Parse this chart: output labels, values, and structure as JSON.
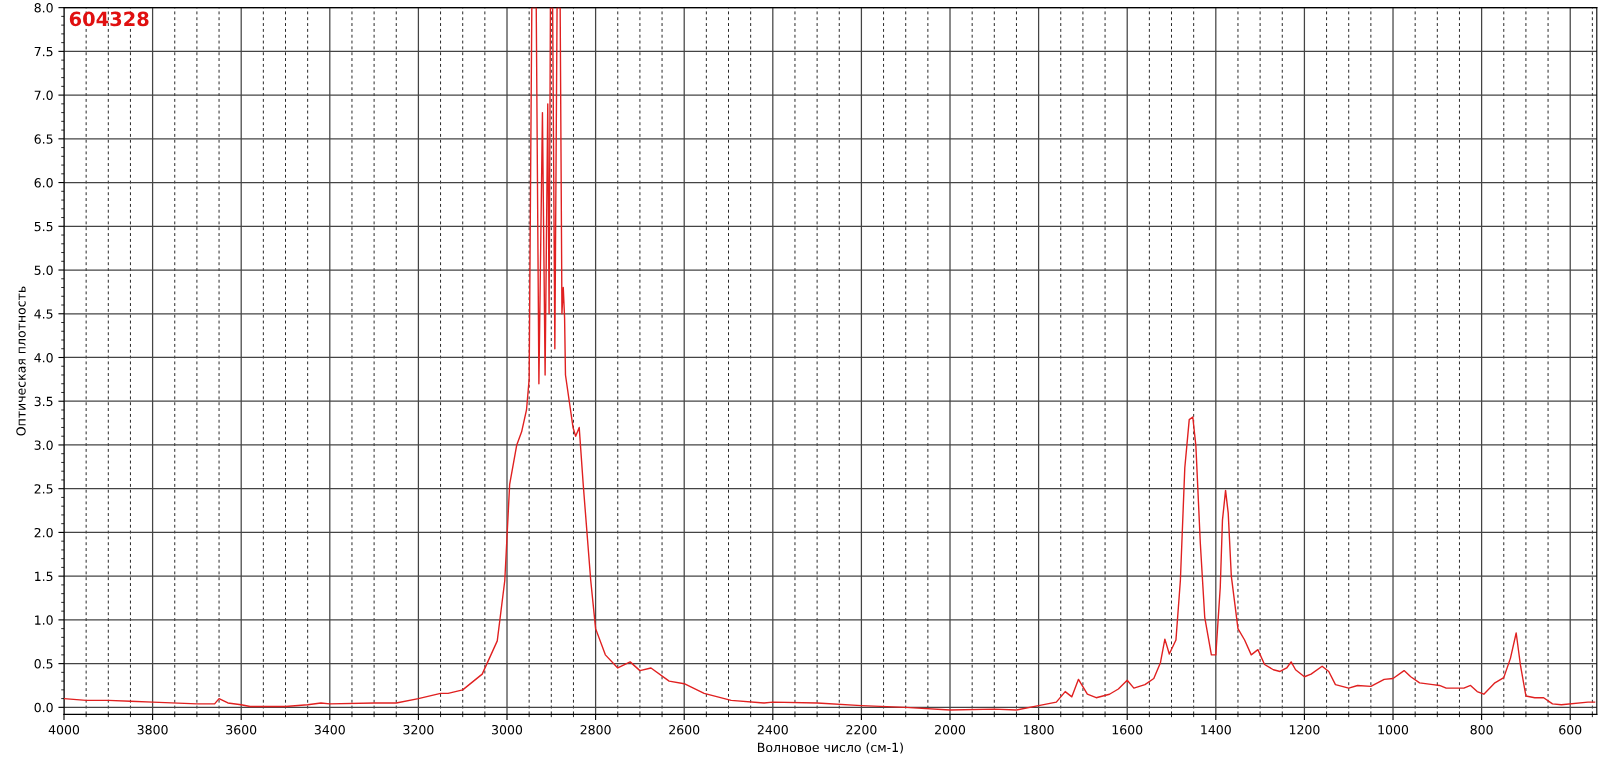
{
  "chart_data": {
    "type": "line",
    "xlabel": "Волновое число (см-1)",
    "ylabel": "Оптическая плотность",
    "annotations": [
      "604328"
    ],
    "xlim": [
      4000,
      540
    ],
    "ylim": [
      -0.08,
      8.0
    ],
    "xticks": [
      4000,
      3800,
      3600,
      3400,
      3200,
      3000,
      2800,
      2600,
      2400,
      2200,
      2000,
      1800,
      1600,
      1400,
      1200,
      1000,
      800,
      600
    ],
    "yticks": [
      {
        "value": 0,
        "label": "0.0"
      },
      {
        "value": 0.5,
        "label": "0.5"
      },
      {
        "value": 1,
        "label": "1.0"
      },
      {
        "value": 1.5,
        "label": "1.5"
      },
      {
        "value": 2,
        "label": "2.0"
      },
      {
        "value": 2.5,
        "label": "2.5"
      },
      {
        "value": 3,
        "label": "3.0"
      },
      {
        "value": 3.5,
        "label": "3.5"
      },
      {
        "value": 4,
        "label": "4.0"
      },
      {
        "value": 4.5,
        "label": "4.5"
      },
      {
        "value": 5,
        "label": "5.0"
      },
      {
        "value": 5.5,
        "label": "5.5"
      },
      {
        "value": 6,
        "label": "6.0"
      },
      {
        "value": 6.5,
        "label": "6.5"
      },
      {
        "value": 7,
        "label": "7.0"
      },
      {
        "value": 7.5,
        "label": "7.5"
      },
      {
        "value": 8,
        "label": "8.0"
      }
    ],
    "grid": true,
    "legend": false,
    "marker": "none",
    "line_style": "solid",
    "series": [
      {
        "color": "#e02020",
        "x": [
          4000,
          3950,
          3900,
          3850,
          3800,
          3700,
          3660,
          3650,
          3630,
          3600,
          3580,
          3500,
          3450,
          3420,
          3400,
          3300,
          3250,
          3200,
          3150,
          3133,
          3100,
          3056,
          3022,
          3005,
          2994,
          2978,
          2967,
          2956,
          2950,
          2944,
          2934,
          2928,
          2920,
          2914,
          2908,
          2905,
          2902,
          2897,
          2892,
          2887,
          2880,
          2876,
          2873,
          2870,
          2868,
          2851,
          2845,
          2837,
          2828,
          2811,
          2800,
          2778,
          2750,
          2722,
          2700,
          2675,
          2634,
          2600,
          2555,
          2494,
          2420,
          2400,
          2300,
          2200,
          2100,
          2000,
          1900,
          1850,
          1800,
          1760,
          1740,
          1725,
          1710,
          1690,
          1670,
          1640,
          1620,
          1600,
          1585,
          1560,
          1540,
          1525,
          1515,
          1505,
          1490,
          1480,
          1470,
          1460,
          1452,
          1445,
          1435,
          1425,
          1410,
          1400,
          1390,
          1385,
          1378,
          1372,
          1365,
          1350,
          1335,
          1320,
          1305,
          1290,
          1270,
          1255,
          1240,
          1230,
          1220,
          1200,
          1185,
          1160,
          1145,
          1130,
          1100,
          1080,
          1050,
          1020,
          1000,
          975,
          960,
          940,
          910,
          895,
          880,
          840,
          825,
          810,
          795,
          770,
          750,
          735,
          722,
          712,
          700,
          680,
          660,
          640,
          620,
          560,
          545
        ],
        "values": [
          0.1,
          0.08,
          0.08,
          0.07,
          0.06,
          0.04,
          0.04,
          0.1,
          0.05,
          0.03,
          0.01,
          0.01,
          0.03,
          0.05,
          0.04,
          0.05,
          0.05,
          0.1,
          0.16,
          0.16,
          0.2,
          0.38,
          0.76,
          1.45,
          2.55,
          3.0,
          3.15,
          3.4,
          3.75,
          8.0,
          8.0,
          3.7,
          6.8,
          3.8,
          6.9,
          4.5,
          8.0,
          8.0,
          4.1,
          8.0,
          8.0,
          4.5,
          4.8,
          4.45,
          3.8,
          3.2,
          3.1,
          3.2,
          2.55,
          1.45,
          0.9,
          0.6,
          0.45,
          0.52,
          0.42,
          0.45,
          0.3,
          0.27,
          0.16,
          0.08,
          0.05,
          0.06,
          0.05,
          0.02,
          0.0,
          -0.03,
          -0.02,
          -0.03,
          0.02,
          0.06,
          0.18,
          0.12,
          0.32,
          0.15,
          0.11,
          0.15,
          0.21,
          0.31,
          0.22,
          0.26,
          0.33,
          0.51,
          0.78,
          0.61,
          0.77,
          1.45,
          2.74,
          3.29,
          3.32,
          2.99,
          1.88,
          1.03,
          0.6,
          0.6,
          1.37,
          2.14,
          2.48,
          2.22,
          1.5,
          0.9,
          0.77,
          0.6,
          0.66,
          0.49,
          0.43,
          0.41,
          0.45,
          0.52,
          0.43,
          0.35,
          0.38,
          0.47,
          0.41,
          0.26,
          0.22,
          0.25,
          0.24,
          0.32,
          0.33,
          0.42,
          0.35,
          0.28,
          0.26,
          0.25,
          0.22,
          0.22,
          0.25,
          0.18,
          0.15,
          0.28,
          0.34,
          0.56,
          0.85,
          0.47,
          0.13,
          0.11,
          0.11,
          0.04,
          0.03,
          0.06,
          0.06
        ]
      }
    ]
  }
}
